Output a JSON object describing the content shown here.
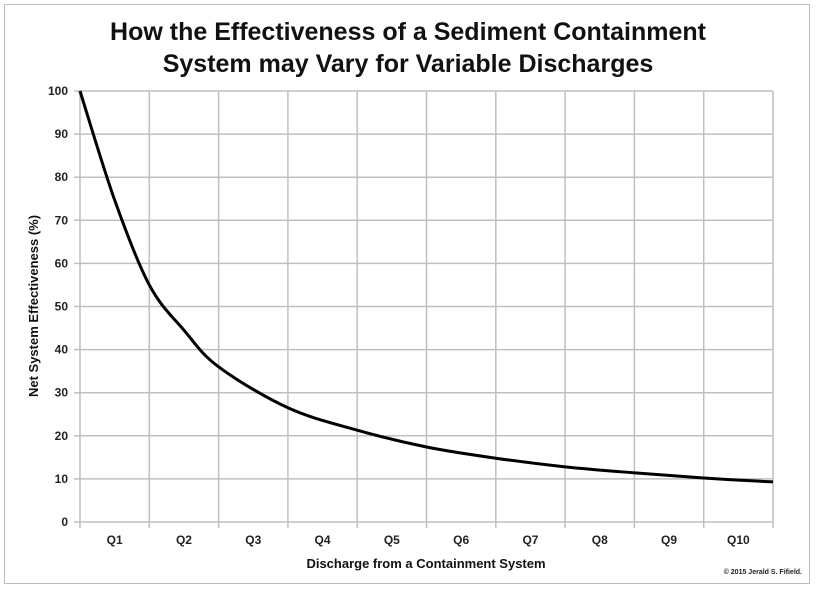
{
  "chart_data": {
    "type": "line",
    "title": "How the Effectiveness of a Sediment Containment System may Vary for Variable Discharges",
    "title_lines": [
      "How the Effectiveness of a Sediment Containment",
      "System may Vary for Variable Discharges"
    ],
    "xlabel": "Discharge from a Containment System",
    "ylabel": "Net System Effectiveness (%)",
    "categories": [
      "Q1",
      "Q2",
      "Q3",
      "Q4",
      "Q5",
      "Q6",
      "Q7",
      "Q8",
      "Q9",
      "Q10"
    ],
    "yticks": [
      0,
      10,
      20,
      30,
      40,
      50,
      60,
      70,
      80,
      90,
      100
    ],
    "ylim": [
      0,
      100
    ],
    "xlim": [
      0,
      10
    ],
    "grid": true,
    "series": [
      {
        "x": [
          0,
          0.5,
          1,
          1.5,
          2,
          3,
          4,
          5,
          6,
          7,
          8,
          9,
          10
        ],
        "y": [
          100,
          74.7,
          55,
          44.5,
          36,
          26.5,
          21.3,
          17.4,
          14.8,
          12.8,
          11.4,
          10.2,
          9.3
        ],
        "color": "#000000"
      }
    ],
    "gridColor": "#c0c0c0"
  },
  "copyright": "© 2015 Jerald S. Fifield."
}
